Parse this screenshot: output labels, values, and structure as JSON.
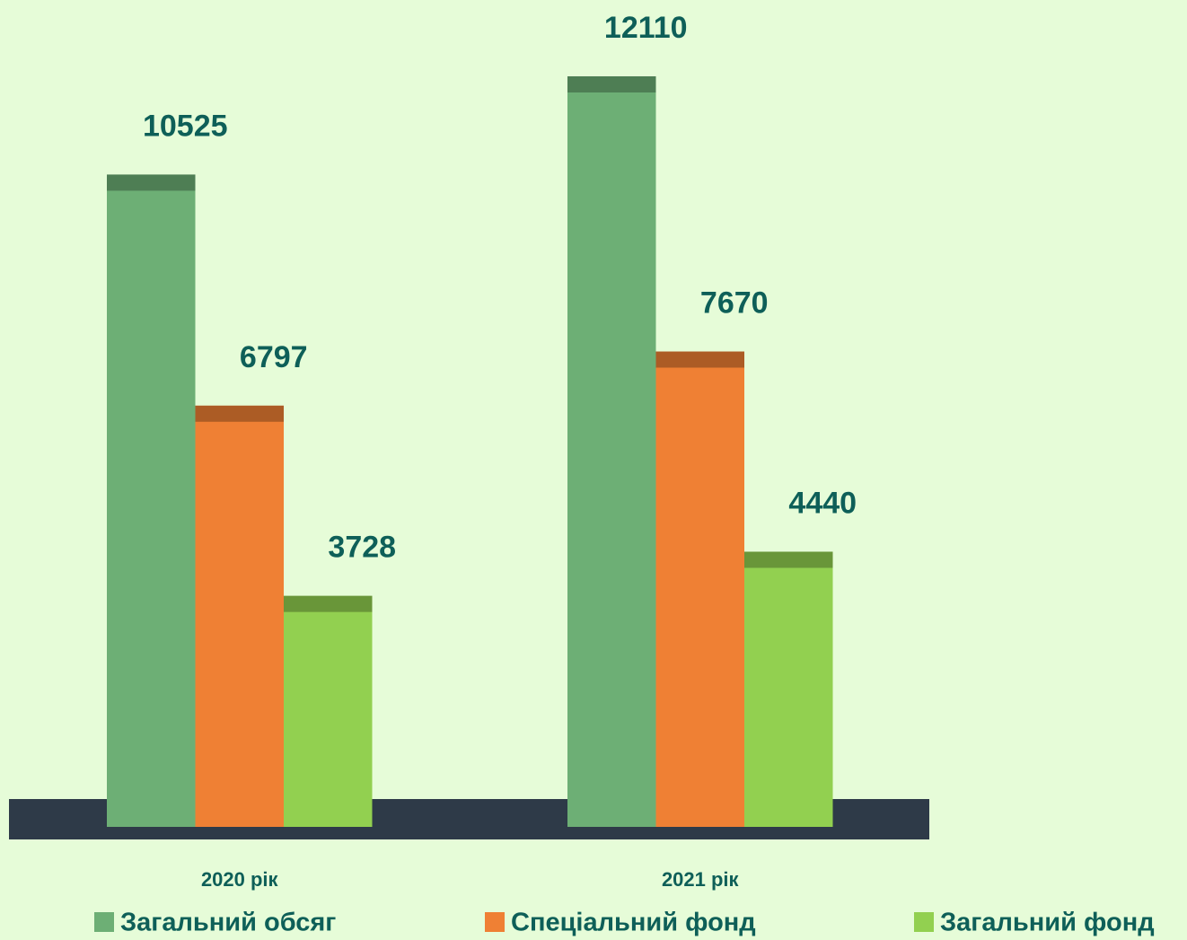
{
  "chart_data": {
    "type": "bar",
    "categories": [
      "2020 рік",
      "2021 рік"
    ],
    "series": [
      {
        "name": "Загальний обсяг",
        "color": "#6daf75",
        "values": [
          10525,
          12110
        ]
      },
      {
        "name": "Спеціальний фонд",
        "color": "#ef8034",
        "values": [
          6797,
          7670
        ]
      },
      {
        "name": "Загальний фонд",
        "color": "#92d050",
        "values": [
          3728,
          4440
        ]
      }
    ]
  }
}
